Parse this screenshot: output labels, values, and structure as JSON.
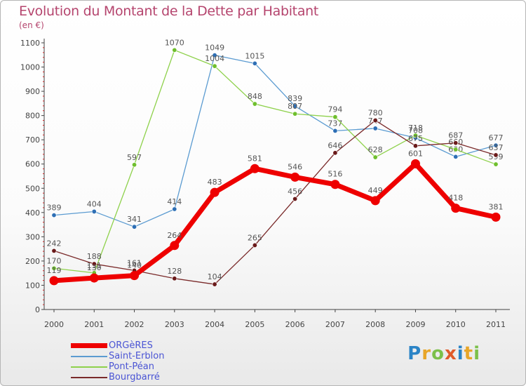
{
  "title": "Evolution du Montant de la Dette par Habitant",
  "subtitle": "(en €)",
  "logo": "Proxiti",
  "chart_data": {
    "type": "line",
    "title": "Evolution du Montant de la Dette par Habitant",
    "ylabel": "(en €)",
    "xlabel": "",
    "x": [
      "2000",
      "2001",
      "2002",
      "2003",
      "2004",
      "2005",
      "2006",
      "2007",
      "2008",
      "2009",
      "2010",
      "2011"
    ],
    "ylim": [
      0,
      1100
    ],
    "yticks": [
      0,
      100,
      200,
      300,
      400,
      500,
      600,
      700,
      800,
      900,
      1000,
      1100
    ],
    "grid": false,
    "legend_position": "bottom-left",
    "series": [
      {
        "name": "Saint-Erblon",
        "color": "#5b9bd1",
        "marker": "#2e6fb5",
        "values": [
          389,
          404,
          341,
          414,
          1049,
          1015,
          839,
          737,
          747,
          708,
          630,
          677
        ],
        "labels": [
          "389",
          "404",
          "341",
          "414",
          "1049",
          "1015",
          "839",
          "737",
          "747",
          "708",
          "630",
          "677"
        ]
      },
      {
        "name": "Pont-Péan",
        "color": "#8ed14b",
        "marker": "#6fbf2d",
        "values": [
          170,
          151,
          597,
          1070,
          1004,
          848,
          807,
          794,
          628,
          718,
          660,
          599
        ],
        "labels": [
          "170",
          "151",
          "597",
          "1070",
          "1004",
          "848",
          "807",
          "794",
          "628",
          "718",
          "660",
          "599"
        ]
      },
      {
        "name": "Bourgbarré",
        "color": "#7a2a2a",
        "marker": "#6a1a1a",
        "values": [
          242,
          188,
          161,
          128,
          104,
          265,
          456,
          646,
          780,
          675,
          687,
          637
        ],
        "labels": [
          "242",
          "188",
          "161",
          "128",
          "104",
          "265",
          "456",
          "646",
          "780",
          "675",
          "687",
          "637"
        ]
      },
      {
        "name": "ORGèRES",
        "color": "#ee0000",
        "marker": "#ee0000",
        "values": [
          119,
          130,
          140,
          264,
          483,
          581,
          546,
          516,
          449,
          601,
          418,
          381
        ],
        "labels": [
          "119",
          "130",
          "140",
          "264",
          "483",
          "581",
          "546",
          "516",
          "449",
          "601",
          "418",
          "381"
        ]
      }
    ]
  },
  "legend": [
    {
      "label": "ORGèRES",
      "color": "#ee0000"
    },
    {
      "label": "Saint-Erblon",
      "color": "#5b9bd1"
    },
    {
      "label": "Pont-Péan",
      "color": "#8ed14b"
    },
    {
      "label": "Bourgbarré",
      "color": "#7a2a2a"
    }
  ]
}
